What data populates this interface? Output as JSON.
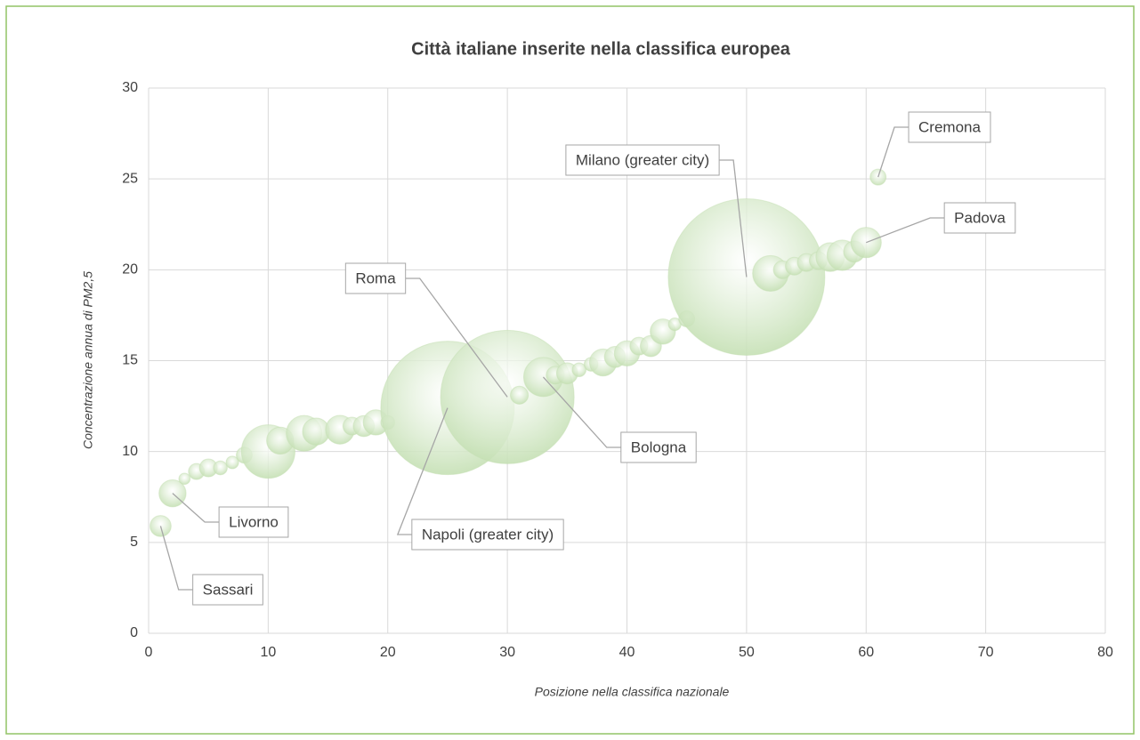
{
  "chart_data": {
    "type": "bubble",
    "title": "Città italiane inserite nella classifica europea",
    "x_label": "Posizione nella classifica nazionale",
    "y_label": "Concentrazione annua di PM2,5",
    "color": "#c5e0b4",
    "grid": true,
    "xlim": [
      0,
      80
    ],
    "xticks": [
      0,
      10,
      20,
      30,
      40,
      50,
      60,
      70,
      80
    ],
    "ylim": [
      0,
      30
    ],
    "yticks": [
      0,
      5,
      10,
      15,
      20,
      25,
      30
    ],
    "x": [
      1,
      2,
      3,
      4,
      5,
      6,
      7,
      8,
      10,
      11,
      13,
      14,
      16,
      17,
      18,
      19,
      20,
      25,
      30,
      31,
      33,
      34,
      35,
      36,
      37,
      38,
      39,
      40,
      41,
      42,
      43,
      44,
      45,
      50,
      52,
      53,
      54,
      55,
      56,
      57,
      58,
      59,
      60,
      61
    ],
    "y": [
      5.9,
      7.7,
      8.5,
      8.9,
      9.1,
      9.1,
      9.4,
      9.8,
      10.0,
      10.6,
      11.0,
      11.1,
      11.2,
      11.4,
      11.4,
      11.6,
      11.6,
      12.4,
      13.0,
      13.1,
      14.1,
      14.2,
      14.3,
      14.5,
      14.8,
      14.9,
      15.2,
      15.4,
      15.8,
      15.8,
      16.6,
      17.0,
      17.3,
      19.6,
      19.8,
      20.0,
      20.2,
      20.4,
      20.5,
      20.7,
      20.8,
      21.0,
      21.5,
      25.1
    ],
    "sizes": [
      1.4,
      2.3,
      0.4,
      0.8,
      1,
      0.6,
      0.5,
      0.8,
      9,
      2.3,
      4,
      2.3,
      2.6,
      1,
      1.4,
      2,
      0.6,
      56,
      56,
      1,
      4.8,
      1,
      1.4,
      0.6,
      0.6,
      2.3,
      1.4,
      2,
      1,
      1.4,
      2,
      0.5,
      0.8,
      77,
      4,
      1,
      1,
      1,
      1,
      2.6,
      2.9,
      1.4,
      2.9,
      0.8
    ],
    "point_labels": [
      "Sassari",
      "Livorno",
      null,
      null,
      null,
      null,
      null,
      null,
      null,
      null,
      null,
      null,
      null,
      null,
      null,
      null,
      null,
      "Napoli (greater city)",
      "Roma",
      null,
      "Bologna",
      null,
      null,
      null,
      null,
      null,
      null,
      null,
      null,
      null,
      null,
      null,
      null,
      "Milano (greater city)",
      null,
      null,
      null,
      null,
      null,
      null,
      null,
      null,
      "Padova",
      "Cremona"
    ]
  }
}
